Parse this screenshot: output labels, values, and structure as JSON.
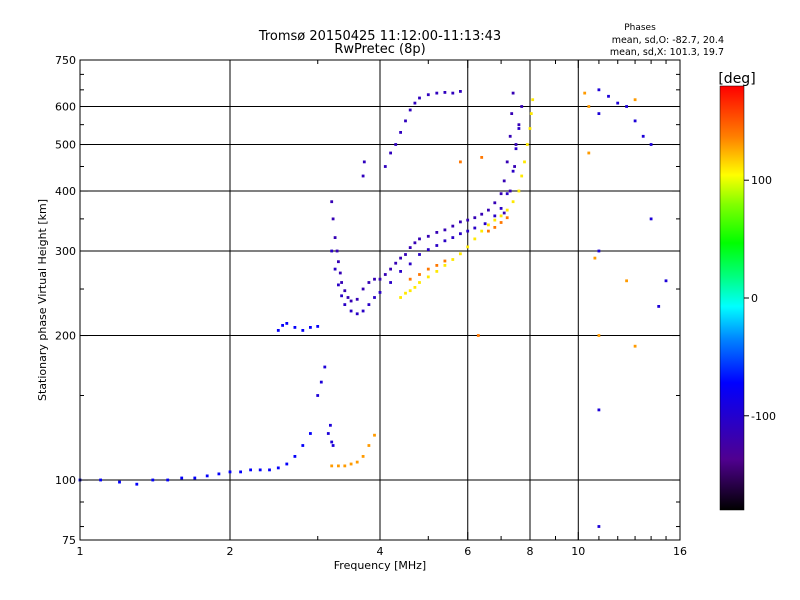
{
  "chart_data": {
    "type": "scatter",
    "title": "Tromsø 20150425 11:12:00-11:13:43",
    "subtitle": "RwPretec (8p)",
    "xlabel": "Frequency [MHz]",
    "ylabel": "Stationary phase Virtual Height [km]",
    "x_scale": "log",
    "y_scale": "log",
    "xlim": [
      1,
      16
    ],
    "ylim": [
      75,
      750
    ],
    "grid": true,
    "x_ticks": [
      1,
      2,
      4,
      6,
      8,
      10,
      16
    ],
    "x_minor_ticks": [
      3,
      5,
      7,
      9,
      11,
      12,
      13,
      14,
      15
    ],
    "y_ticks": [
      75,
      100,
      200,
      300,
      400,
      500,
      600,
      750
    ],
    "y_minor_ticks": [
      80,
      90,
      150,
      250,
      350,
      450,
      550,
      650,
      700
    ],
    "phase_stats": {
      "heading": "Phases",
      "line_o": "mean, sd,O: -82.7, 20.4",
      "line_x": "mean, sd,X: 101.3, 19.7"
    },
    "colorbar": {
      "label": "[deg]",
      "range": [
        -180,
        180
      ],
      "ticks": [
        100,
        0,
        -100
      ],
      "tick_labels": [
        "100",
        "0",
        "-100"
      ]
    },
    "series": [
      {
        "phase": -115,
        "points": [
          [
            3.2,
            380
          ],
          [
            3.22,
            350
          ],
          [
            3.25,
            320
          ],
          [
            3.28,
            300
          ],
          [
            3.3,
            285
          ],
          [
            3.33,
            270
          ],
          [
            3.35,
            258
          ],
          [
            3.4,
            248
          ],
          [
            3.45,
            240
          ],
          [
            3.5,
            236
          ],
          [
            3.6,
            238
          ],
          [
            3.7,
            250
          ],
          [
            3.8,
            258
          ],
          [
            3.9,
            262
          ],
          [
            4.0,
            262
          ],
          [
            4.1,
            268
          ],
          [
            4.2,
            275
          ],
          [
            4.3,
            283
          ],
          [
            4.4,
            290
          ],
          [
            4.5,
            295
          ],
          [
            4.6,
            305
          ],
          [
            4.7,
            312
          ],
          [
            4.8,
            318
          ],
          [
            5.0,
            322
          ],
          [
            5.2,
            328
          ],
          [
            5.4,
            332
          ],
          [
            5.6,
            338
          ],
          [
            5.8,
            345
          ],
          [
            6.0,
            348
          ],
          [
            6.2,
            352
          ],
          [
            6.4,
            358
          ],
          [
            6.6,
            365
          ],
          [
            6.8,
            378
          ],
          [
            7.0,
            395
          ],
          [
            7.1,
            420
          ],
          [
            7.2,
            460
          ],
          [
            7.3,
            520
          ],
          [
            7.35,
            580
          ],
          [
            7.4,
            640
          ],
          [
            7.1,
            360
          ],
          [
            7.3,
            400
          ],
          [
            7.45,
            450
          ],
          [
            7.5,
            500
          ],
          [
            7.6,
            550
          ],
          [
            7.7,
            600
          ]
        ]
      },
      {
        "phase": -105,
        "points": [
          [
            3.2,
            300
          ],
          [
            3.25,
            275
          ],
          [
            3.3,
            255
          ],
          [
            3.35,
            242
          ],
          [
            3.4,
            232
          ],
          [
            3.5,
            225
          ],
          [
            3.6,
            222
          ],
          [
            3.7,
            225
          ],
          [
            3.8,
            232
          ],
          [
            3.9,
            240
          ],
          [
            4.0,
            246
          ],
          [
            4.2,
            258
          ],
          [
            4.4,
            272
          ],
          [
            4.6,
            282
          ],
          [
            4.8,
            295
          ],
          [
            5.0,
            302
          ],
          [
            5.2,
            308
          ],
          [
            5.4,
            315
          ],
          [
            5.6,
            320
          ],
          [
            5.8,
            326
          ],
          [
            6.0,
            330
          ],
          [
            6.2,
            335
          ],
          [
            6.5,
            342
          ],
          [
            6.8,
            355
          ],
          [
            7.0,
            368
          ],
          [
            7.2,
            395
          ],
          [
            7.4,
            440
          ],
          [
            7.5,
            490
          ],
          [
            7.6,
            540
          ]
        ]
      },
      {
        "phase": -110,
        "points": [
          [
            4.1,
            450
          ],
          [
            4.2,
            480
          ],
          [
            4.3,
            500
          ],
          [
            4.4,
            530
          ],
          [
            4.5,
            560
          ],
          [
            4.6,
            590
          ],
          [
            4.7,
            610
          ],
          [
            4.8,
            625
          ],
          [
            5.0,
            635
          ],
          [
            5.2,
            640
          ],
          [
            5.4,
            642
          ],
          [
            5.6,
            640
          ],
          [
            5.8,
            645
          ],
          [
            3.7,
            430
          ],
          [
            3.72,
            460
          ]
        ]
      },
      {
        "phase": -95,
        "points": [
          [
            3.0,
            150
          ],
          [
            3.05,
            160
          ],
          [
            3.1,
            172
          ],
          [
            3.15,
            125
          ],
          [
            3.18,
            130
          ],
          [
            3.2,
            120
          ],
          [
            3.22,
            118
          ]
        ]
      },
      {
        "phase": -75,
        "points": [
          [
            1.0,
            100
          ],
          [
            1.1,
            100
          ],
          [
            1.2,
            99
          ],
          [
            1.3,
            98
          ],
          [
            1.4,
            100
          ],
          [
            1.5,
            100
          ],
          [
            1.6,
            101
          ],
          [
            1.7,
            101
          ],
          [
            1.8,
            102
          ],
          [
            1.9,
            103
          ],
          [
            2.0,
            104
          ],
          [
            2.1,
            104
          ],
          [
            2.2,
            105
          ],
          [
            2.3,
            105
          ],
          [
            2.4,
            105
          ],
          [
            2.5,
            106
          ],
          [
            2.6,
            108
          ],
          [
            2.7,
            112
          ],
          [
            2.8,
            118
          ],
          [
            2.9,
            125
          ],
          [
            2.5,
            205
          ],
          [
            2.55,
            210
          ],
          [
            2.6,
            212
          ],
          [
            2.7,
            208
          ],
          [
            2.8,
            205
          ],
          [
            2.9,
            208
          ],
          [
            3.0,
            209
          ]
        ]
      },
      {
        "phase": 130,
        "points": [
          [
            3.2,
            107
          ],
          [
            3.3,
            107
          ],
          [
            3.4,
            107
          ],
          [
            3.5,
            108
          ],
          [
            3.6,
            109
          ],
          [
            3.7,
            112
          ],
          [
            3.8,
            118
          ],
          [
            3.9,
            124
          ]
        ]
      },
      {
        "phase": 110,
        "points": [
          [
            4.4,
            240
          ],
          [
            4.5,
            245
          ],
          [
            4.6,
            248
          ],
          [
            4.7,
            252
          ],
          [
            4.8,
            258
          ],
          [
            5.0,
            265
          ],
          [
            5.2,
            272
          ],
          [
            5.4,
            280
          ],
          [
            5.6,
            288
          ],
          [
            5.8,
            296
          ],
          [
            6.0,
            306
          ],
          [
            6.2,
            318
          ],
          [
            6.4,
            330
          ],
          [
            6.6,
            340
          ],
          [
            6.8,
            348
          ],
          [
            7.0,
            355
          ],
          [
            7.2,
            365
          ],
          [
            7.4,
            380
          ],
          [
            7.6,
            400
          ],
          [
            7.7,
            430
          ],
          [
            7.8,
            460
          ],
          [
            7.9,
            500
          ],
          [
            8.0,
            540
          ],
          [
            8.05,
            580
          ],
          [
            8.1,
            620
          ]
        ]
      },
      {
        "phase": 140,
        "points": [
          [
            4.6,
            262
          ],
          [
            4.8,
            268
          ],
          [
            5.0,
            275
          ],
          [
            5.2,
            280
          ],
          [
            5.4,
            286
          ],
          [
            6.6,
            330
          ],
          [
            6.8,
            336
          ],
          [
            7.0,
            344
          ],
          [
            7.2,
            352
          ],
          [
            6.3,
            200
          ],
          [
            6.4,
            470
          ],
          [
            5.8,
            460
          ]
        ]
      },
      {
        "phase": -95,
        "points": [
          [
            11.0,
            650
          ],
          [
            11.0,
            580
          ],
          [
            11.0,
            300
          ],
          [
            11.0,
            140
          ],
          [
            11.0,
            80
          ],
          [
            11.5,
            630
          ],
          [
            12.0,
            610
          ],
          [
            12.5,
            600
          ],
          [
            13.0,
            560
          ],
          [
            13.5,
            520
          ],
          [
            14.0,
            500
          ],
          [
            14.0,
            350
          ],
          [
            14.5,
            230
          ],
          [
            15.0,
            260
          ]
        ]
      },
      {
        "phase": 130,
        "points": [
          [
            10.3,
            640
          ],
          [
            10.5,
            600
          ],
          [
            10.5,
            480
          ],
          [
            10.8,
            290
          ],
          [
            11.0,
            200
          ],
          [
            12.5,
            260
          ],
          [
            13.0,
            190
          ],
          [
            13.0,
            620
          ]
        ]
      }
    ]
  }
}
